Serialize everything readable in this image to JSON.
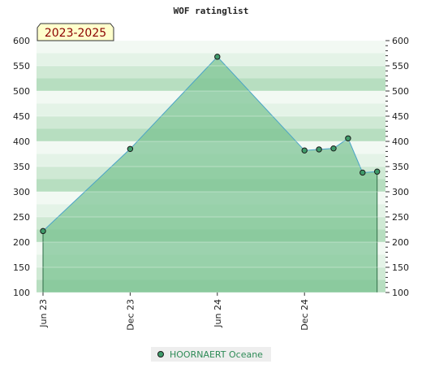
{
  "chart_data": {
    "type": "area",
    "title": "WOF ratinglist",
    "period_label": "2023-2025",
    "xlabel": "",
    "ylabel": "",
    "ylim": [
      100,
      600
    ],
    "y_ticks": [
      100,
      150,
      200,
      250,
      300,
      350,
      400,
      450,
      500,
      550,
      600
    ],
    "x_ticks": [
      "Jun 23",
      "Dec 23",
      "Jun 24",
      "Dec 24"
    ],
    "x_tick_month_index": [
      0,
      6,
      12,
      18
    ],
    "grid": true,
    "legend_position": "bottom",
    "series": [
      {
        "name": "HOORNAERT Oceane",
        "x_month_index": [
          0,
          6,
          12,
          18,
          19,
          20,
          21,
          22,
          23
        ],
        "values": [
          222,
          385,
          568,
          382,
          384,
          386,
          406,
          338,
          340
        ]
      }
    ]
  },
  "colors": {
    "area_fill": "#78c290",
    "line": "#4aa3c8",
    "marker": "#3f9b6a",
    "band_dark": "#b7dec0",
    "band_mid": "#cfe9d4",
    "band_light": "#e4f3e7",
    "band_white": "#f2f9f3",
    "period_box": "#ffffcc",
    "legend_text": "#2e8b57"
  }
}
